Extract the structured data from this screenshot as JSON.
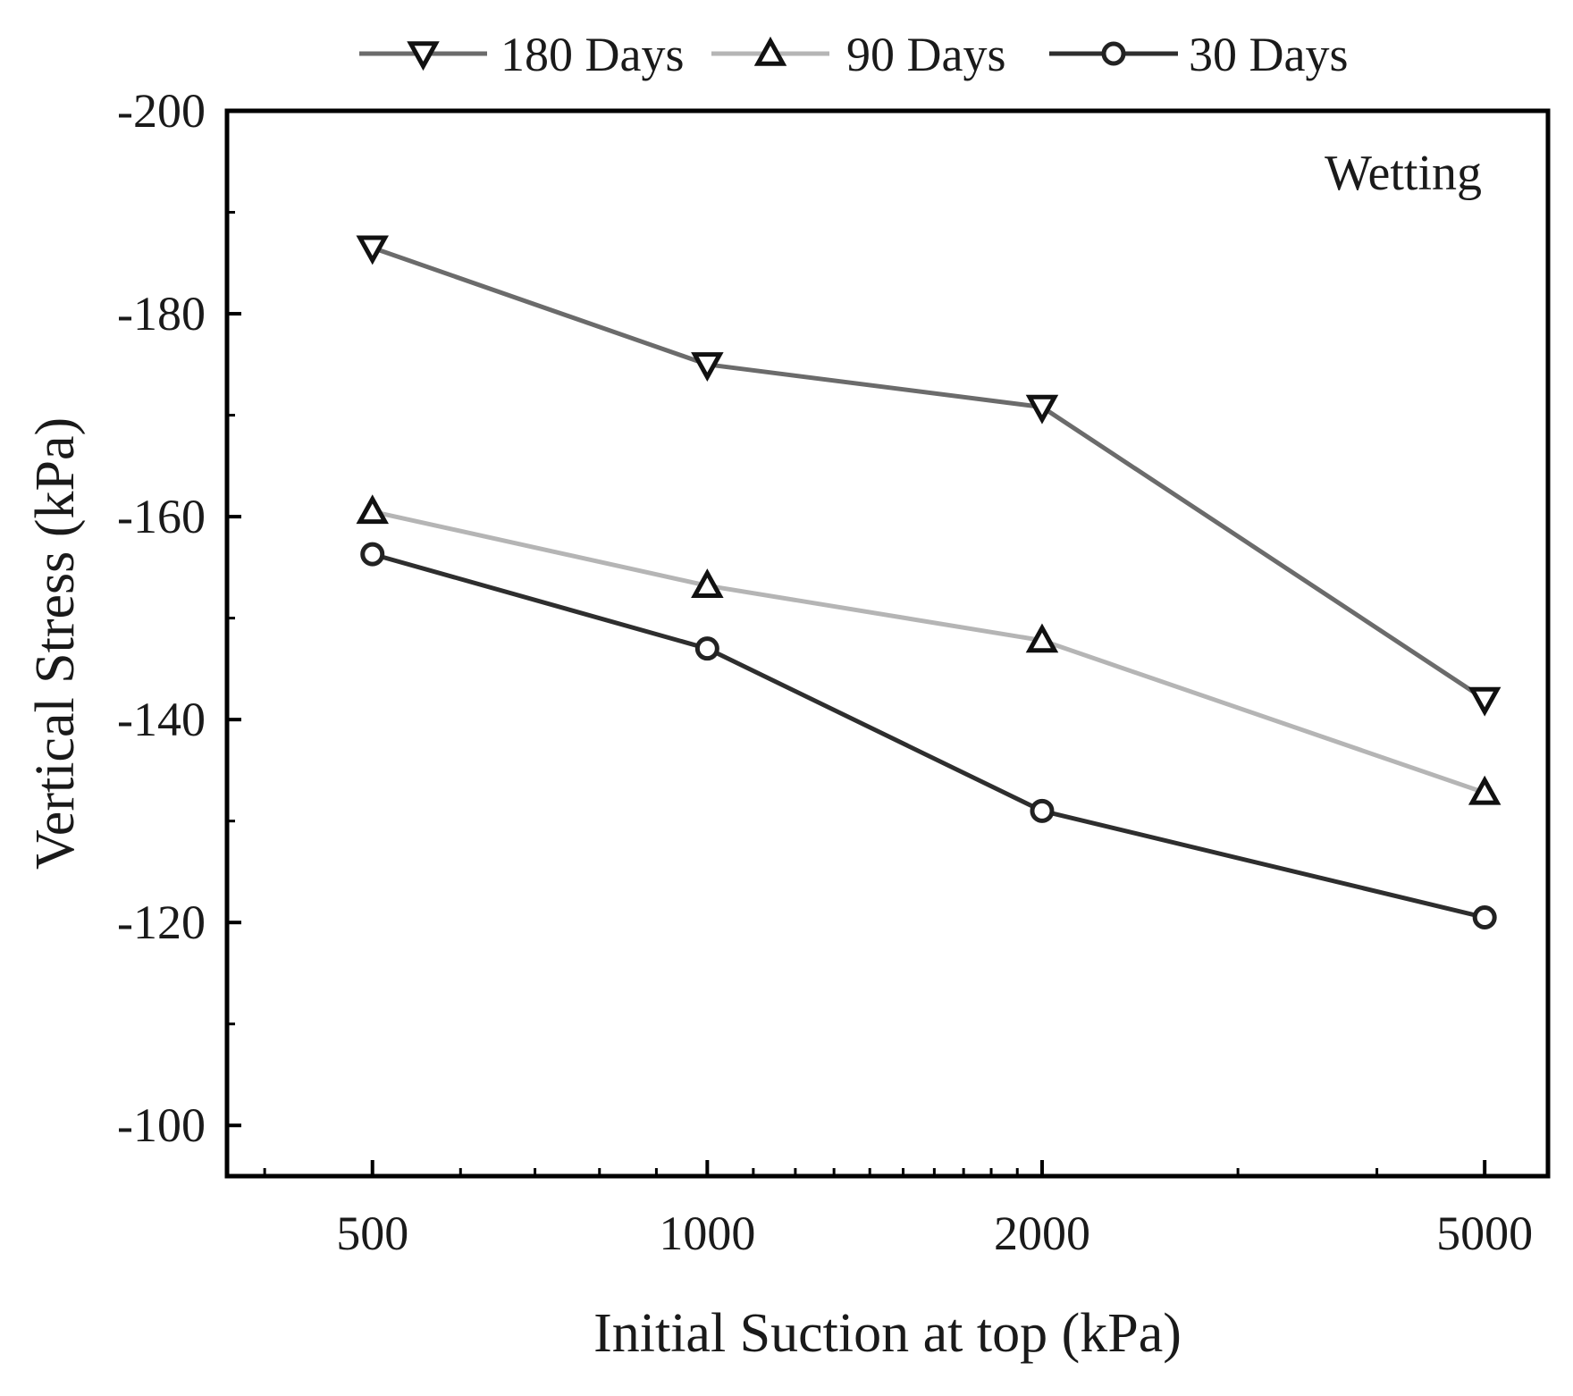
{
  "chart_data": {
    "type": "line",
    "x_scale": "log",
    "categories": [
      500,
      1000,
      2000,
      5000
    ],
    "x_tick_labels": [
      "500",
      "1000",
      "2000",
      "5000"
    ],
    "xlim": [
      370,
      5700
    ],
    "ylim": [
      -95,
      -200
    ],
    "y_ticks": [
      -100,
      -120,
      -140,
      -160,
      -180,
      -200
    ],
    "y_tick_labels": [
      "-100",
      "-120",
      "-140",
      "-160",
      "-180",
      "-200"
    ],
    "y_minor_step": 10,
    "xlabel": "Initial Suction at top (kPa)",
    "ylabel": "Vertical Stress (kPa)",
    "annotation": "Wetting",
    "legend_position": "top",
    "series": [
      {
        "name": "180 Days",
        "marker": "triangle-down",
        "color": "#6b6b6b",
        "values": [
          -186.5,
          -175,
          -170.8,
          -142
        ]
      },
      {
        "name": "90 Days",
        "marker": "triangle-up",
        "color": "#b5b5b5",
        "values": [
          -160.5,
          -153.2,
          -147.8,
          -132.8
        ]
      },
      {
        "name": "30 Days",
        "marker": "circle",
        "color": "#2e2e2e",
        "values": [
          -156.3,
          -147,
          -131,
          -120.5
        ]
      }
    ]
  }
}
